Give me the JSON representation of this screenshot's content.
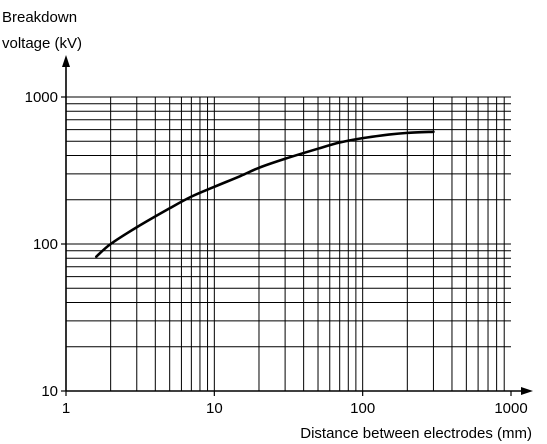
{
  "chart_data": {
    "type": "line",
    "title": "",
    "ylabel_line1": "Breakdown",
    "ylabel_line2": "voltage  (kV)",
    "xlabel": "Distance between electrodes (mm)",
    "x_scale": "log",
    "y_scale": "log",
    "xlim": [
      1,
      1000
    ],
    "ylim": [
      10,
      1000
    ],
    "x_tick_labels": [
      "1",
      "10",
      "100",
      "1000"
    ],
    "y_tick_labels": [
      "10",
      "100",
      "1000"
    ],
    "grid": true,
    "legend": "none",
    "series": [
      {
        "x": [
          1.6,
          2,
          3,
          5,
          7,
          10,
          15,
          20,
          30,
          50,
          70,
          100,
          150,
          200,
          300
        ],
        "y": [
          82,
          100,
          130,
          175,
          210,
          245,
          290,
          330,
          380,
          445,
          490,
          525,
          555,
          570,
          580
        ]
      }
    ],
    "line_color": "#000000"
  }
}
